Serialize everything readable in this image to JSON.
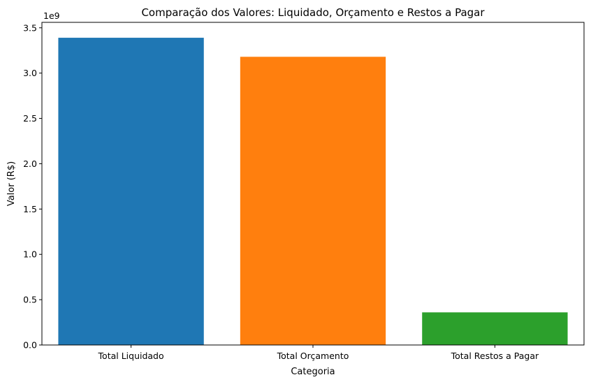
{
  "chart_data": {
    "type": "bar",
    "title": "Comparação dos Valores: Liquidado, Orçamento e Restos a Pagar",
    "xlabel": "Categoria",
    "ylabel": "Valor (R$)",
    "categories": [
      "Total Liquidado",
      "Total Orçamento",
      "Total Restos a Pagar"
    ],
    "values": [
      3390000000,
      3180000000,
      360000000
    ],
    "colors": [
      "#1f77b4",
      "#ff7f0e",
      "#2ca02c"
    ],
    "ylim": [
      0,
      3560000000
    ],
    "yticks": [
      0,
      0.5,
      1.0,
      1.5,
      2.0,
      2.5,
      3.0,
      3.5
    ],
    "ytick_labels": [
      "0.0",
      "0.5",
      "1.0",
      "1.5",
      "2.0",
      "2.5",
      "3.0",
      "3.5"
    ],
    "y_offset_label": "1e9",
    "y_scale_factor": 1000000000,
    "grid": false,
    "legend": false
  }
}
